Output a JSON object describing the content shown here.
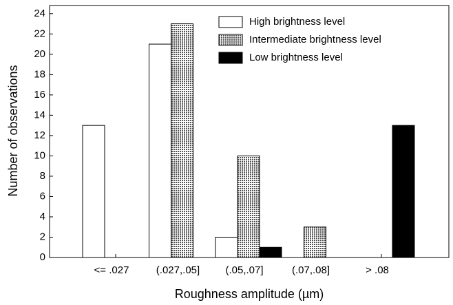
{
  "chart_data": {
    "type": "bar",
    "x_label": "Roughness amplitude (µm)",
    "y_label": "Number of observations",
    "categories": [
      "<= .027",
      "(.027,.05]",
      "(.05,.07]",
      "(.07,.08]",
      "> .08"
    ],
    "series": [
      {
        "name": "High brightness level",
        "color": "#ffffff",
        "values": [
          13,
          21,
          2,
          0,
          0
        ]
      },
      {
        "name": "Intermediate brightness level",
        "color": "#9a9a9a",
        "values": [
          0,
          23,
          10,
          3,
          0
        ]
      },
      {
        "name": "Low brightness level",
        "color": "#000000",
        "values": [
          0,
          0,
          1,
          0,
          13
        ]
      }
    ],
    "ylim": [
      0,
      24.8
    ],
    "yticks": [
      0,
      2,
      4,
      6,
      8,
      10,
      12,
      14,
      16,
      18,
      20,
      22,
      24
    ],
    "grid": false
  }
}
